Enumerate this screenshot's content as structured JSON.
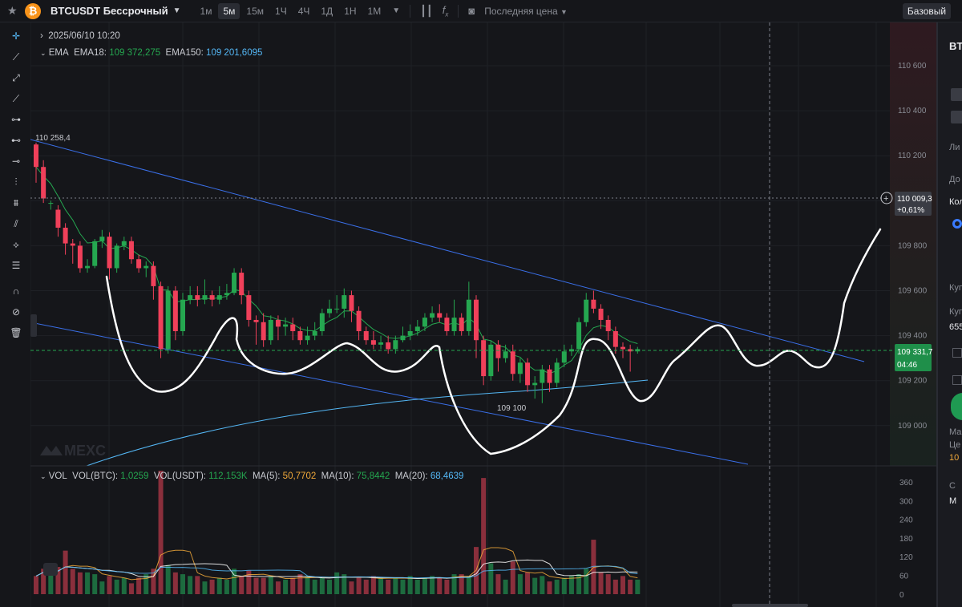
{
  "header": {
    "symbol": "BTCUSDT Бессрочный",
    "coin_glyph": "₿",
    "timeframes": [
      "1м",
      "5м",
      "15м",
      "1Ч",
      "4Ч",
      "1Д",
      "1Н",
      "1М"
    ],
    "active_timeframe": "5м",
    "price_type": "Последняя цена",
    "view_button": "Базовый"
  },
  "legend": {
    "date": "2025/06/10 10:20",
    "ema_label": "EMA",
    "ema18_label": "EMA18:",
    "ema18_value": "109 372,275",
    "ema150_label": "EMA150:",
    "ema150_value": "109 201,6095",
    "vol_label": "VOL",
    "vol_btc_label": "VOL(BTC):",
    "vol_btc_value": "1,0259",
    "vol_usdt_label": "VOL(USDT):",
    "vol_usdt_value": "112,153K",
    "ma5_label": "MA(5):",
    "ma5_value": "50,7702",
    "ma10_label": "MA(10):",
    "ma10_value": "75,8442",
    "ma20_label": "MA(20):",
    "ma20_value": "68,4639"
  },
  "price_axis": [
    "110 600",
    "110 400",
    "110 200",
    "110 000",
    "109 800",
    "109 600",
    "109 400",
    "109 200",
    "109 000"
  ],
  "volume_axis": [
    "360",
    "300",
    "240",
    "180",
    "120",
    "60",
    "0"
  ],
  "annotations": {
    "high_label": "110 258,4",
    "low_label": "109 100",
    "crosshair_price": "110 009,3",
    "crosshair_change": "+0,61%",
    "last_price": "109 331,7",
    "countdown": "04:46",
    "watermark": "MEXC"
  },
  "right_panel": {
    "items": [
      "BT",
      "Ли",
      "До",
      "Кол",
      "Куп",
      "Куп",
      "655",
      "Ма",
      "Це",
      "10",
      "С",
      "М"
    ]
  },
  "colors": {
    "up": "#25a750",
    "down": "#f0405a",
    "ema18": "#25a750",
    "ema150": "#54b7f5",
    "trendline": "#3a6fe8",
    "ma5": "#f0a83a",
    "ma10": "#ffffff",
    "ma20": "#54b7f5"
  }
}
